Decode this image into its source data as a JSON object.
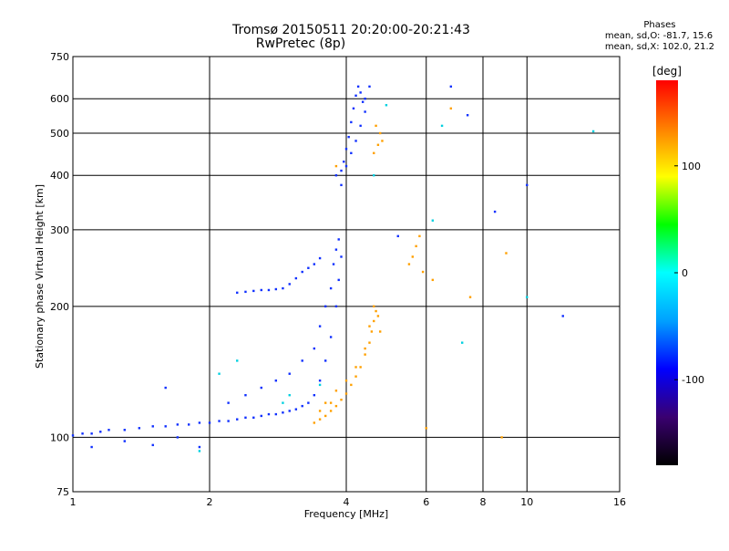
{
  "title": {
    "line1": "Tromsø 20150511 20:20:00-20:21:43",
    "line2": "RwPretec (8p)"
  },
  "phase_info": {
    "heading": "Phases",
    "line_o": "mean, sd,O: -81.7, 15.6",
    "line_x": "mean, sd,X: 102.0, 21.2"
  },
  "colorbar": {
    "unit_label": "[deg]",
    "ticks": [
      "100",
      "0",
      "-100"
    ],
    "tick_values": [
      100,
      0,
      -100
    ],
    "range": [
      -180,
      180
    ],
    "colors": [
      "#000000",
      "#3a0070",
      "#0000ff",
      "#00a0ff",
      "#00ffff",
      "#00ff00",
      "#ffff00",
      "#ff8000",
      "#ff0000"
    ]
  },
  "chart_data": {
    "type": "scatter",
    "xlabel": "Frequency [MHz]",
    "ylabel": "Stationary phase Virtual Height [km]",
    "x_scale": "log",
    "y_scale": "log",
    "xlim": [
      1,
      16
    ],
    "ylim": [
      75,
      750
    ],
    "x_ticks": [
      1,
      2,
      4,
      6,
      8,
      10,
      16
    ],
    "x_tick_labels": [
      "1",
      "2",
      "4",
      "6",
      "8",
      "10",
      "16"
    ],
    "y_ticks": [
      75,
      100,
      200,
      300,
      400,
      500,
      600,
      750
    ],
    "y_tick_labels": [
      "75",
      "100",
      "200",
      "300",
      "400",
      "500",
      "600",
      "750"
    ],
    "grid": true,
    "series": [
      {
        "mode": "O",
        "color": "#1030ff",
        "points": [
          [
            1.0,
            101
          ],
          [
            1.05,
            102
          ],
          [
            1.1,
            102
          ],
          [
            1.15,
            103
          ],
          [
            1.2,
            104
          ],
          [
            1.3,
            104
          ],
          [
            1.4,
            105
          ],
          [
            1.5,
            106
          ],
          [
            1.6,
            106
          ],
          [
            1.7,
            107
          ],
          [
            1.8,
            107
          ],
          [
            1.9,
            108
          ],
          [
            2.0,
            108
          ],
          [
            2.1,
            109
          ],
          [
            2.2,
            109
          ],
          [
            2.3,
            110
          ],
          [
            2.4,
            111
          ],
          [
            2.5,
            111
          ],
          [
            2.6,
            112
          ],
          [
            2.7,
            113
          ],
          [
            2.8,
            113
          ],
          [
            2.9,
            114
          ],
          [
            3.0,
            115
          ],
          [
            3.1,
            116
          ],
          [
            3.2,
            118
          ],
          [
            3.3,
            120
          ],
          [
            3.4,
            125
          ],
          [
            3.5,
            135
          ],
          [
            3.6,
            150
          ],
          [
            3.7,
            170
          ],
          [
            3.8,
            200
          ],
          [
            3.85,
            230
          ],
          [
            3.9,
            260
          ],
          [
            2.2,
            120
          ],
          [
            2.4,
            125
          ],
          [
            2.6,
            130
          ],
          [
            2.8,
            135
          ],
          [
            3.0,
            140
          ],
          [
            3.2,
            150
          ],
          [
            3.4,
            160
          ],
          [
            3.5,
            180
          ],
          [
            3.6,
            200
          ],
          [
            3.7,
            220
          ],
          [
            3.75,
            250
          ],
          [
            3.8,
            270
          ],
          [
            3.85,
            285
          ],
          [
            2.3,
            215
          ],
          [
            2.4,
            216
          ],
          [
            2.5,
            217
          ],
          [
            2.6,
            218
          ],
          [
            2.7,
            218
          ],
          [
            2.8,
            219
          ],
          [
            2.9,
            220
          ],
          [
            3.0,
            225
          ],
          [
            3.1,
            232
          ],
          [
            3.2,
            240
          ],
          [
            3.3,
            245
          ],
          [
            3.4,
            250
          ],
          [
            3.5,
            258
          ],
          [
            3.8,
            400
          ],
          [
            3.9,
            410
          ],
          [
            3.95,
            430
          ],
          [
            4.0,
            460
          ],
          [
            4.05,
            490
          ],
          [
            4.1,
            530
          ],
          [
            4.15,
            570
          ],
          [
            4.2,
            610
          ],
          [
            4.25,
            640
          ],
          [
            4.3,
            620
          ],
          [
            4.35,
            590
          ],
          [
            4.4,
            560
          ],
          [
            3.9,
            380
          ],
          [
            4.0,
            420
          ],
          [
            4.1,
            450
          ],
          [
            4.2,
            480
          ],
          [
            4.3,
            520
          ],
          [
            4.4,
            600
          ],
          [
            4.5,
            640
          ],
          [
            1.1,
            95
          ],
          [
            1.3,
            98
          ],
          [
            1.5,
            96
          ],
          [
            1.7,
            100
          ],
          [
            1.9,
            95
          ],
          [
            1.6,
            130
          ],
          [
            5.2,
            290
          ],
          [
            6.8,
            640
          ],
          [
            7.4,
            550
          ],
          [
            8.5,
            330
          ],
          [
            10.0,
            380
          ],
          [
            12.0,
            190
          ]
        ]
      },
      {
        "mode": "X",
        "color": "#ffa000",
        "points": [
          [
            3.4,
            108
          ],
          [
            3.5,
            110
          ],
          [
            3.6,
            112
          ],
          [
            3.7,
            115
          ],
          [
            3.8,
            118
          ],
          [
            3.9,
            122
          ],
          [
            4.0,
            126
          ],
          [
            4.1,
            132
          ],
          [
            4.2,
            138
          ],
          [
            4.3,
            145
          ],
          [
            4.4,
            155
          ],
          [
            4.5,
            165
          ],
          [
            4.55,
            175
          ],
          [
            4.6,
            185
          ],
          [
            4.65,
            195
          ],
          [
            3.6,
            120
          ],
          [
            3.8,
            128
          ],
          [
            4.0,
            135
          ],
          [
            4.2,
            145
          ],
          [
            4.4,
            160
          ],
          [
            4.5,
            180
          ],
          [
            4.6,
            200
          ],
          [
            4.7,
            190
          ],
          [
            4.75,
            175
          ],
          [
            3.5,
            115
          ],
          [
            3.7,
            120
          ],
          [
            3.8,
            420
          ],
          [
            4.6,
            450
          ],
          [
            4.7,
            470
          ],
          [
            4.75,
            500
          ],
          [
            4.8,
            480
          ],
          [
            4.65,
            520
          ],
          [
            5.5,
            250
          ],
          [
            5.6,
            260
          ],
          [
            5.7,
            275
          ],
          [
            5.8,
            290
          ],
          [
            5.9,
            240
          ],
          [
            6.2,
            230
          ],
          [
            6.8,
            570
          ],
          [
            7.5,
            210
          ],
          [
            9.0,
            265
          ],
          [
            8.8,
            100
          ],
          [
            6.0,
            105
          ]
        ]
      },
      {
        "mode": "noise",
        "color": "#00d0e0",
        "points": [
          [
            2.1,
            140
          ],
          [
            2.3,
            150
          ],
          [
            2.9,
            120
          ],
          [
            3.0,
            125
          ],
          [
            3.5,
            132
          ],
          [
            4.6,
            400
          ],
          [
            4.9,
            580
          ],
          [
            6.2,
            315
          ],
          [
            6.5,
            520
          ],
          [
            7.2,
            165
          ],
          [
            10.0,
            210
          ],
          [
            14.0,
            505
          ],
          [
            1.9,
            93
          ]
        ]
      }
    ]
  }
}
